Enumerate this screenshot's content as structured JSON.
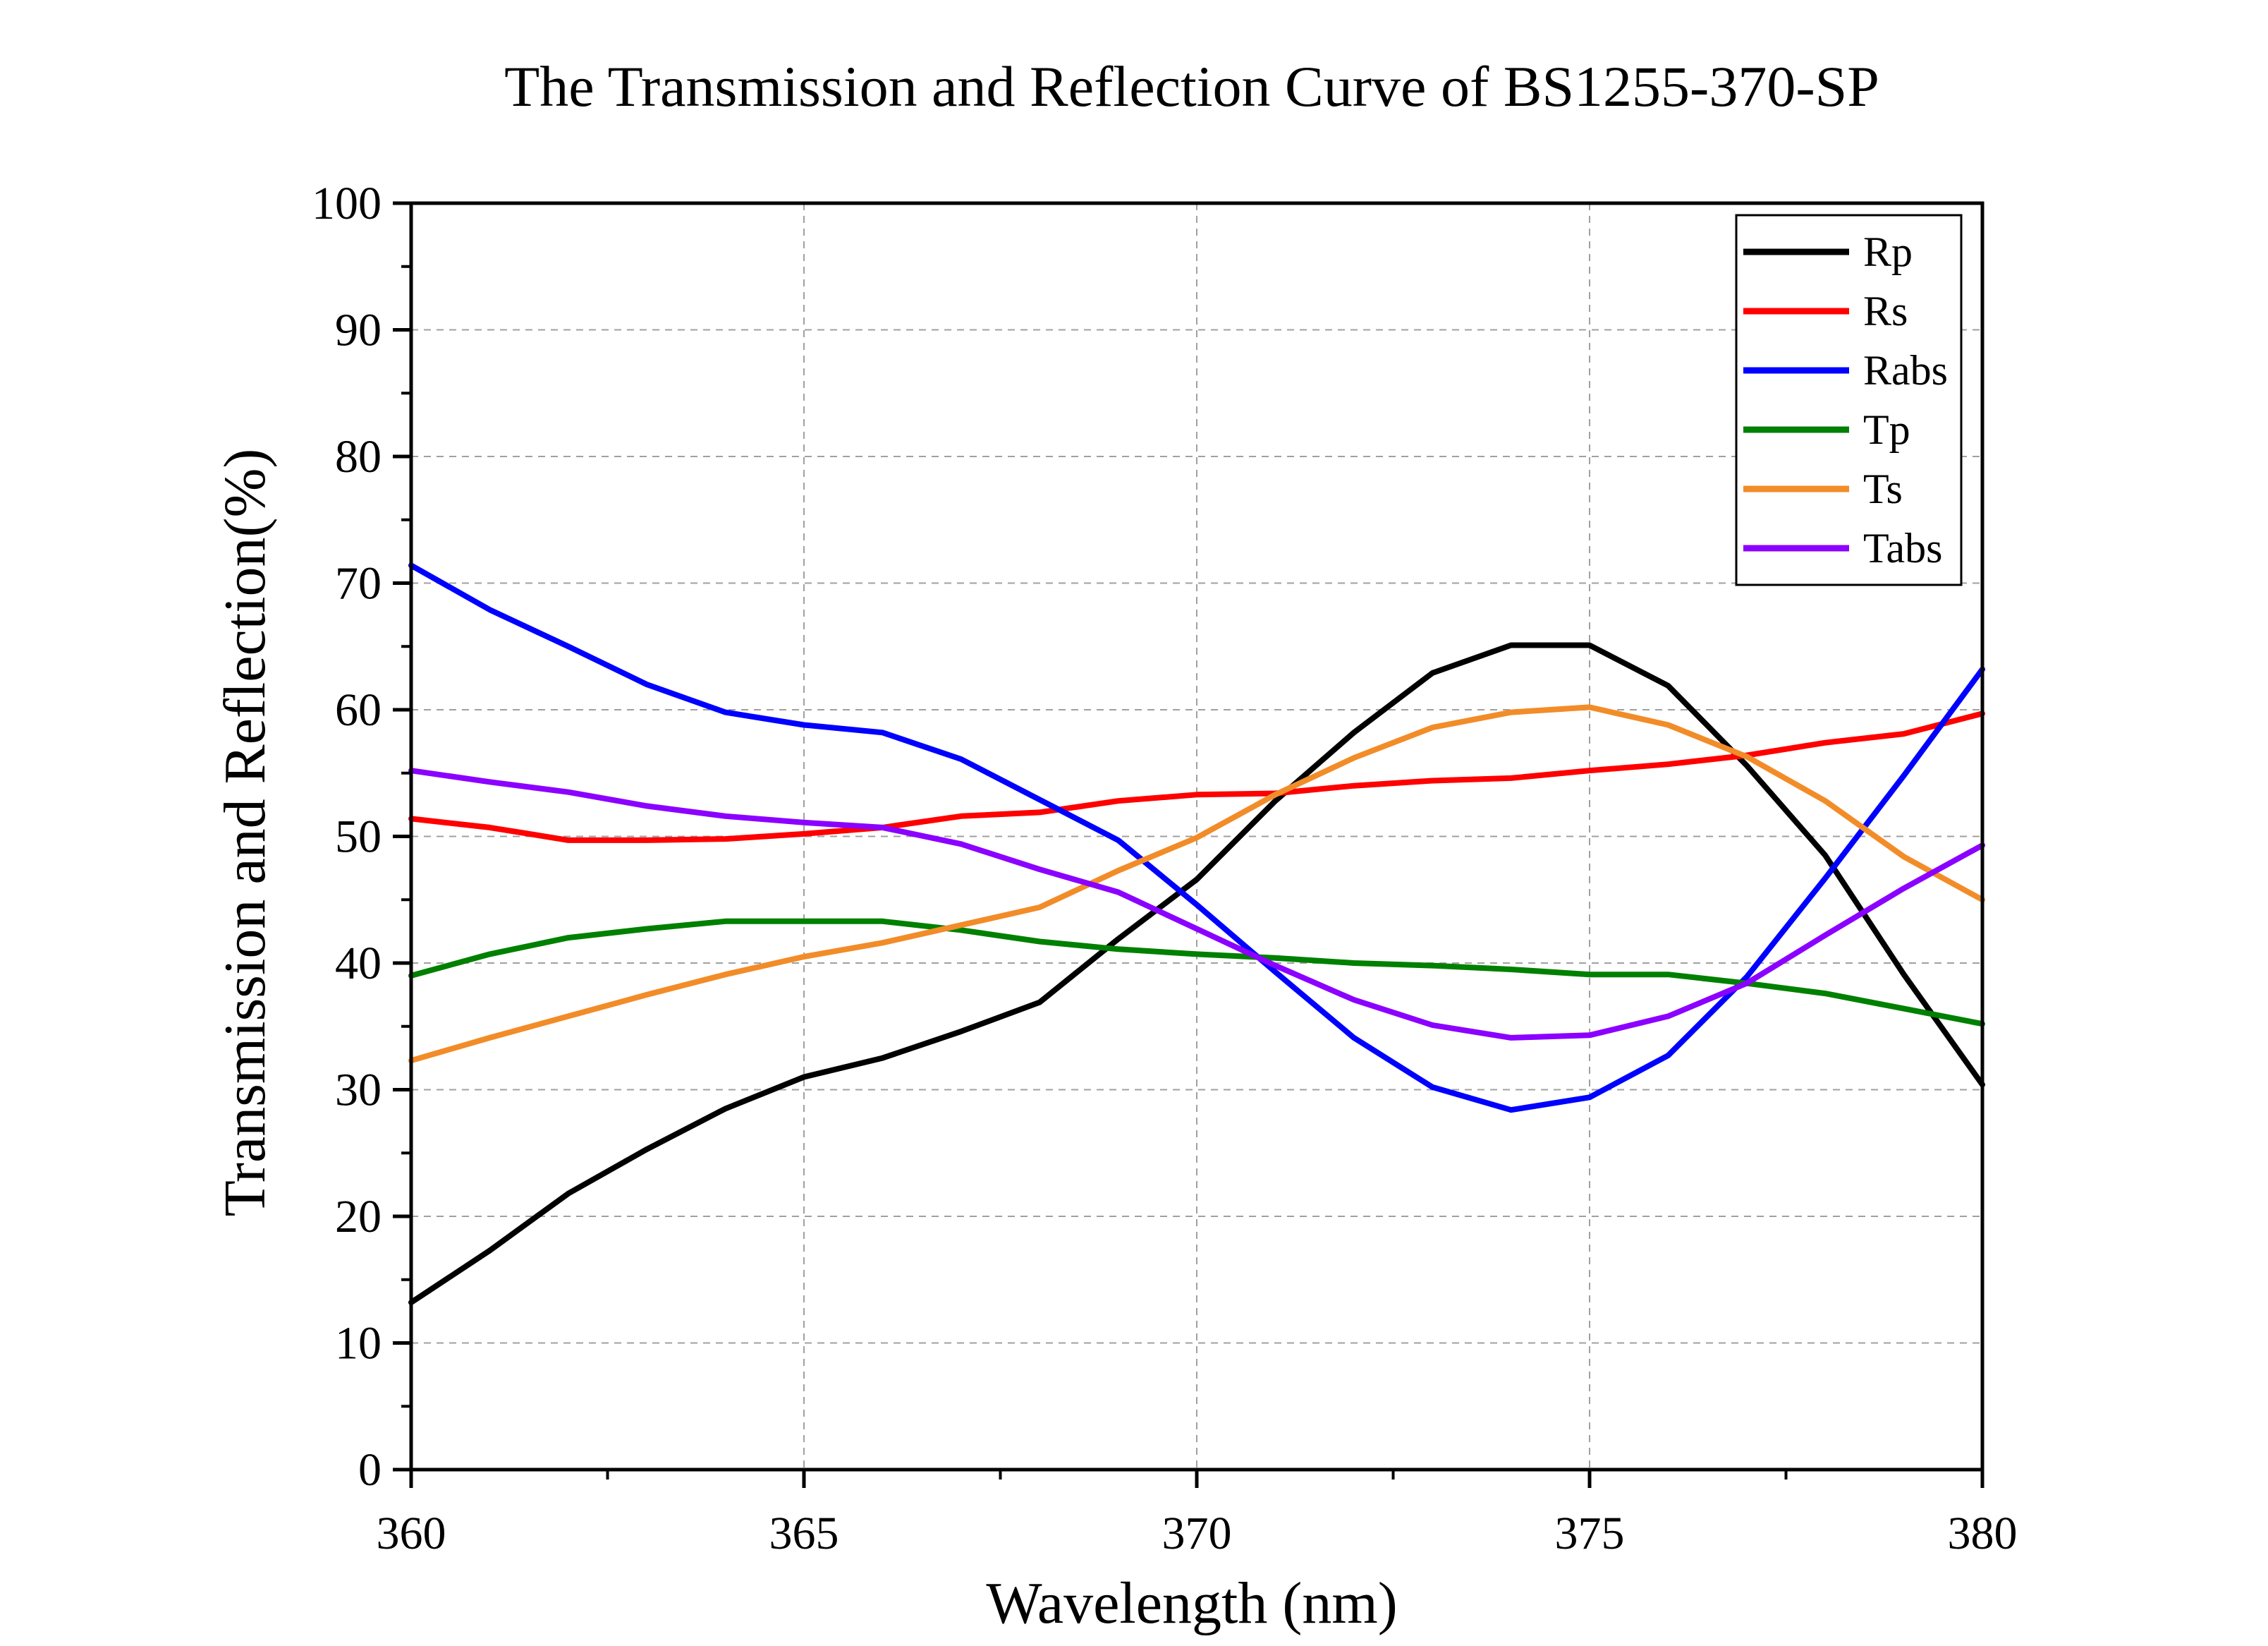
{
  "chart_data": {
    "type": "line",
    "title": "The Transmission and Reflection Curve of BS1255-370-SP",
    "xlabel": "Wavelength (nm)",
    "ylabel": "Transmission and Reflection(%)",
    "xlim": [
      360,
      380
    ],
    "ylim": [
      0,
      100
    ],
    "x_ticks": [
      "360",
      "365",
      "370",
      "375",
      "380"
    ],
    "y_ticks": [
      "0",
      "10",
      "20",
      "30",
      "40",
      "50",
      "60",
      "70",
      "80",
      "90",
      "100"
    ],
    "grid": true,
    "legend_position": "top-right",
    "x": [
      360,
      361,
      362,
      363,
      364,
      365,
      366,
      367,
      368,
      369,
      370,
      371,
      372,
      373,
      374,
      375,
      376,
      377,
      378,
      379,
      380
    ],
    "series": [
      {
        "name": "Rp",
        "color": "#000000",
        "values": [
          13.2,
          17.3,
          21.8,
          25.3,
          28.5,
          31.0,
          32.5,
          34.6,
          36.9,
          41.9,
          46.6,
          52.8,
          58.2,
          62.9,
          65.1,
          65.1,
          61.9,
          55.6,
          48.5,
          39.1,
          30.4
        ]
      },
      {
        "name": "Rs",
        "color": "#ff0000",
        "values": [
          51.4,
          50.7,
          49.7,
          49.7,
          49.8,
          50.2,
          50.7,
          51.6,
          51.9,
          52.8,
          53.3,
          53.4,
          54.0,
          54.4,
          54.6,
          55.2,
          55.7,
          56.4,
          57.4,
          58.1,
          59.7
        ]
      },
      {
        "name": "Rabs",
        "color": "#0000ff",
        "values": [
          71.4,
          67.9,
          65.0,
          62.0,
          59.8,
          58.8,
          58.2,
          56.1,
          52.9,
          49.7,
          44.6,
          39.3,
          34.1,
          30.2,
          28.4,
          29.4,
          32.7,
          38.9,
          46.7,
          54.8,
          63.2
        ]
      },
      {
        "name": "Tp",
        "color": "#008000",
        "values": [
          39.0,
          40.7,
          42.0,
          42.7,
          43.3,
          43.3,
          43.3,
          42.6,
          41.7,
          41.1,
          40.7,
          40.4,
          40.0,
          39.8,
          39.5,
          39.1,
          39.1,
          38.4,
          37.6,
          36.4,
          35.2
        ]
      },
      {
        "name": "Ts",
        "color": "#f28c28",
        "values": [
          32.3,
          34.1,
          35.8,
          37.5,
          39.1,
          40.5,
          41.6,
          43.0,
          44.4,
          47.3,
          49.9,
          53.3,
          56.2,
          58.6,
          59.8,
          60.2,
          58.8,
          56.3,
          52.8,
          48.4,
          45.0
        ]
      },
      {
        "name": "Tabs",
        "color": "#8b00ff",
        "values": [
          55.2,
          54.3,
          53.5,
          52.4,
          51.6,
          51.1,
          50.7,
          49.4,
          47.4,
          45.6,
          42.7,
          39.8,
          37.1,
          35.1,
          34.1,
          34.3,
          35.8,
          38.4,
          42.2,
          45.9,
          49.3
        ]
      }
    ]
  }
}
